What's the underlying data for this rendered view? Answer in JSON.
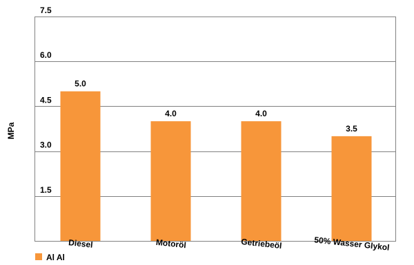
{
  "chart_data": {
    "type": "bar",
    "categories": [
      "Diesel",
      "Motoröl",
      "Getriebeöl",
      "50% Wasser Glykol"
    ],
    "series": [
      {
        "name": "Al Al",
        "values": [
          5.0,
          4.0,
          4.0,
          3.5
        ],
        "labels": [
          "5.0",
          "4.0",
          "4.0",
          "3.5"
        ],
        "color": "#F7963A"
      }
    ],
    "ylabel": "MPa",
    "ylim": [
      0,
      7.5
    ],
    "yticks": [
      1.5,
      3.0,
      4.5,
      6.0,
      7.5
    ],
    "ytick_labels": [
      "1.5",
      "3.0",
      "4.5",
      "6.0",
      "7.5"
    ],
    "grid": true,
    "legend_position": "bottom-left",
    "gridline_color": "#808080",
    "axis_color": "#808080"
  }
}
